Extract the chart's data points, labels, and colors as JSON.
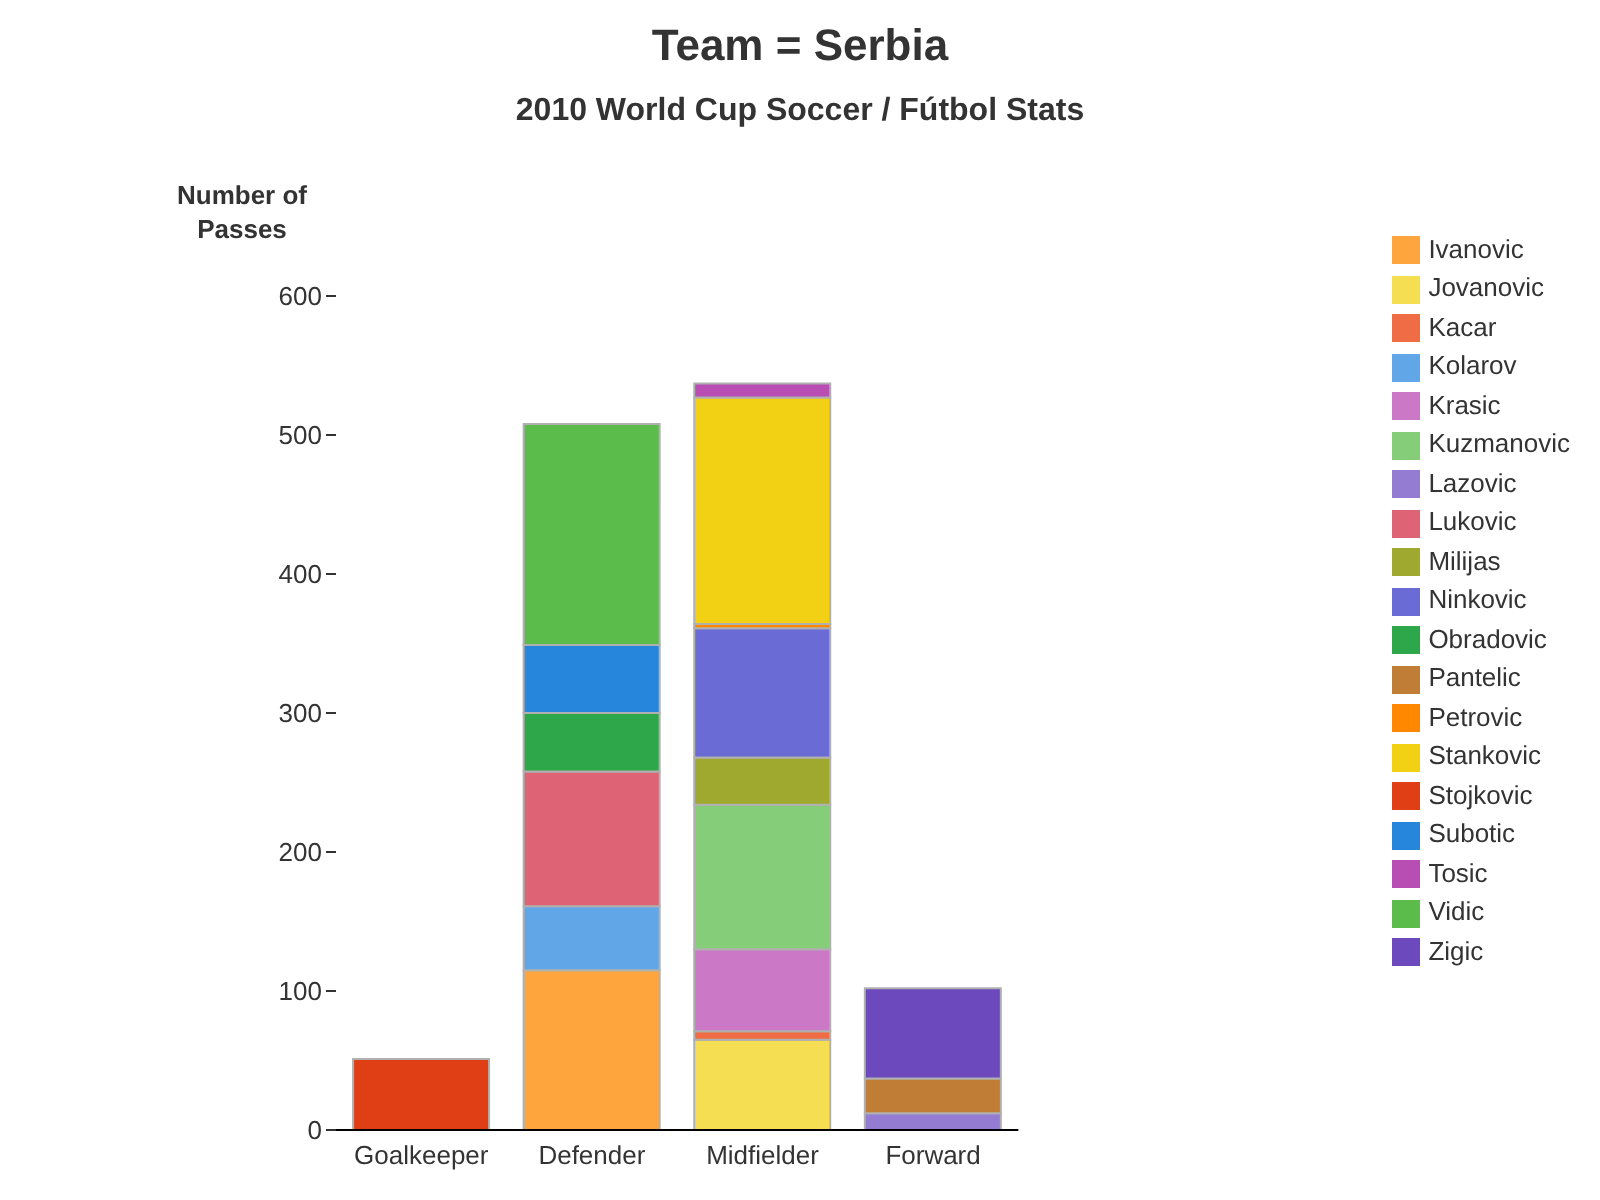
{
  "chart_data": {
    "type": "bar",
    "title": "Team = Serbia",
    "subtitle": "2010 World Cup Soccer / Fútbol Stats",
    "ylabel": "Number of Passes",
    "categories": [
      "Goalkeeper",
      "Defender",
      "Midfielder",
      "Forward"
    ],
    "stacked": true,
    "ylim": [
      0,
      600
    ],
    "yticks": [
      0,
      100,
      200,
      300,
      400,
      500,
      600
    ],
    "grid": false,
    "legend": "right",
    "series": [
      {
        "name": "Ivanovic",
        "color": "#ffa53d",
        "values": [
          null,
          115,
          null,
          null
        ]
      },
      {
        "name": "Jovanovic",
        "color": "#f6de52",
        "values": [
          null,
          null,
          65,
          null
        ]
      },
      {
        "name": "Kacar",
        "color": "#f06c45",
        "values": [
          null,
          null,
          6,
          null
        ]
      },
      {
        "name": "Kolarov",
        "color": "#61a6e6",
        "values": [
          null,
          46,
          null,
          null
        ]
      },
      {
        "name": "Krasic",
        "color": "#cb79c6",
        "values": [
          null,
          null,
          59,
          null
        ]
      },
      {
        "name": "Kuzmanovic",
        "color": "#86cd79",
        "values": [
          null,
          null,
          104,
          null
        ]
      },
      {
        "name": "Lazovic",
        "color": "#947cd3",
        "values": [
          null,
          null,
          null,
          12
        ]
      },
      {
        "name": "Lukovic",
        "color": "#de6374",
        "values": [
          null,
          97,
          null,
          null
        ]
      },
      {
        "name": "Milijas",
        "color": "#9fa92f",
        "values": [
          null,
          null,
          34,
          null
        ]
      },
      {
        "name": "Ninkovic",
        "color": "#6b6bd6",
        "values": [
          null,
          null,
          93,
          null
        ]
      },
      {
        "name": "Obradovic",
        "color": "#2ea64a",
        "values": [
          null,
          42,
          null,
          null
        ]
      },
      {
        "name": "Pantelic",
        "color": "#c07d36",
        "values": [
          null,
          null,
          null,
          25
        ]
      },
      {
        "name": "Petrovic",
        "color": "#ff8800",
        "values": [
          null,
          null,
          3,
          null
        ]
      },
      {
        "name": "Stankovic",
        "color": "#f2d013",
        "values": [
          null,
          null,
          163,
          null
        ]
      },
      {
        "name": "Stojkovic",
        "color": "#e03f16",
        "values": [
          51,
          null,
          null,
          null
        ]
      },
      {
        "name": "Subotic",
        "color": "#2586dc",
        "values": [
          null,
          49,
          null,
          null
        ]
      },
      {
        "name": "Tosic",
        "color": "#b84db4",
        "values": [
          null,
          null,
          10,
          null
        ]
      },
      {
        "name": "Vidic",
        "color": "#5bbb4b",
        "values": [
          null,
          159,
          null,
          null
        ]
      },
      {
        "name": "Zigic",
        "color": "#6c4abd",
        "values": [
          null,
          null,
          null,
          65
        ]
      }
    ]
  }
}
